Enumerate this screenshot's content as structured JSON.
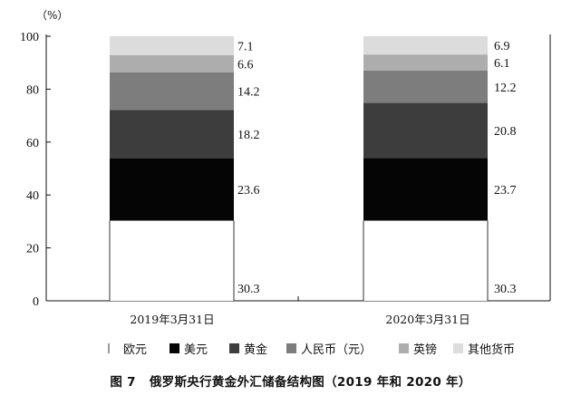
{
  "caption": {
    "number": "图 7",
    "text": "俄罗斯央行黄金外汇储备结构图（2019 年和 2020 年）"
  },
  "chart_data": {
    "type": "bar",
    "stacked": true,
    "unit": "（%）",
    "categories": [
      "2019年3月31日",
      "2020年3月31日"
    ],
    "ylim": [
      0,
      100
    ],
    "yticks": [
      0,
      20,
      40,
      60,
      80,
      100
    ],
    "grid": false,
    "legend_position": "bottom",
    "series": [
      {
        "name": "欧元",
        "values": [
          30.3,
          30.3
        ],
        "labels": [
          "30.3",
          "30.3"
        ],
        "color": "#ffffff"
      },
      {
        "name": "美元",
        "values": [
          23.6,
          23.7
        ],
        "labels": [
          "23.6",
          "23.7"
        ],
        "color": "#050505"
      },
      {
        "name": "黄金",
        "values": [
          18.2,
          20.8
        ],
        "labels": [
          "18.2",
          "20.8"
        ],
        "color": "#3d3d3d"
      },
      {
        "name": "人民币（元）",
        "values": [
          14.2,
          12.2
        ],
        "labels": [
          "14.2",
          "12.2"
        ],
        "color": "#7d7d7d"
      },
      {
        "name": "英镑",
        "values": [
          6.6,
          6.1
        ],
        "labels": [
          "6.6",
          "6.1"
        ],
        "color": "#adadad"
      },
      {
        "name": "其他货币",
        "values": [
          7.1,
          6.9
        ],
        "labels": [
          "7.1",
          "6.9"
        ],
        "color": "#dcdcdc"
      }
    ]
  }
}
